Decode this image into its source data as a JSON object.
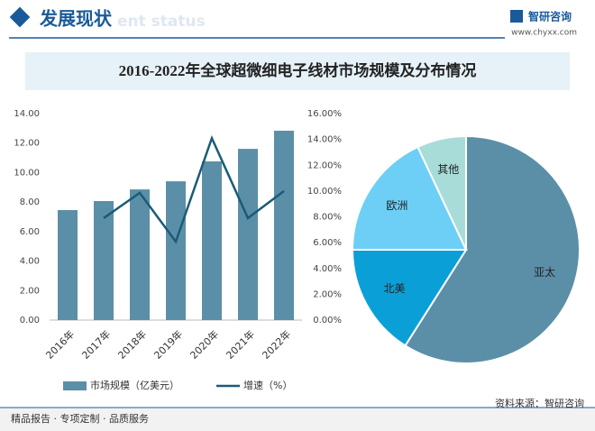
{
  "header": {
    "title": "发展现状",
    "subtitle": "ent status",
    "brand": "智研咨询",
    "url": "www.chyxx.com"
  },
  "title": "2016-2022年全球超微细电子线材市场规模及分布情况",
  "chart_data": [
    {
      "type": "bar_line",
      "categories": [
        "2016年",
        "2017年",
        "2018年",
        "2019年",
        "2020年",
        "2021年",
        "2022年"
      ],
      "series": [
        {
          "name": "市场规模（亿美元）",
          "color": "#5b8fa8",
          "type": "bar",
          "axis": "y",
          "values": [
            7.46,
            8.07,
            8.86,
            9.41,
            10.76,
            11.61,
            12.84
          ]
        },
        {
          "name": "增速（%）",
          "color": "#1b5b78",
          "type": "line",
          "axis": "y2",
          "values": [
            null,
            7.9,
            9.86,
            6.08,
            14.1,
            7.9,
            10.0
          ]
        }
      ],
      "ylim": [
        0,
        14
      ],
      "yticks": [
        {
          "value": 0,
          "label": "0.00"
        },
        {
          "value": 2,
          "label": "2.00"
        },
        {
          "value": 4,
          "label": "4.00"
        },
        {
          "value": 6,
          "label": "6.00"
        },
        {
          "value": 8,
          "label": "8.00"
        },
        {
          "value": 10,
          "label": "10.00"
        },
        {
          "value": 12,
          "label": "12.00"
        },
        {
          "value": 14,
          "label": "14.00"
        }
      ],
      "y2lim": [
        0,
        16
      ],
      "y2ticks": [
        {
          "value": 0,
          "label": "0.00%"
        },
        {
          "value": 2,
          "label": "2.00%"
        },
        {
          "value": 4,
          "label": "4.00%"
        },
        {
          "value": 6,
          "label": "6.00%"
        },
        {
          "value": 8,
          "label": "8.00%"
        },
        {
          "value": 10,
          "label": "10.00%"
        },
        {
          "value": 12,
          "label": "12.00%"
        },
        {
          "value": 14,
          "label": "14.00%"
        },
        {
          "value": 16,
          "label": "16.00%"
        }
      ],
      "legend": "bottom"
    },
    {
      "type": "pie",
      "categories": [
        "亚太",
        "北美",
        "欧洲",
        "其他"
      ],
      "values": [
        59,
        16,
        18,
        7
      ],
      "colors": [
        "#5b8fa8",
        "#0b9fd8",
        "#6dcff6",
        "#a8dcd9"
      ]
    }
  ],
  "footer": {
    "slogan": "精品报告 · 专项定制 · 品质服务",
    "source": "资料来源：智研咨询"
  }
}
